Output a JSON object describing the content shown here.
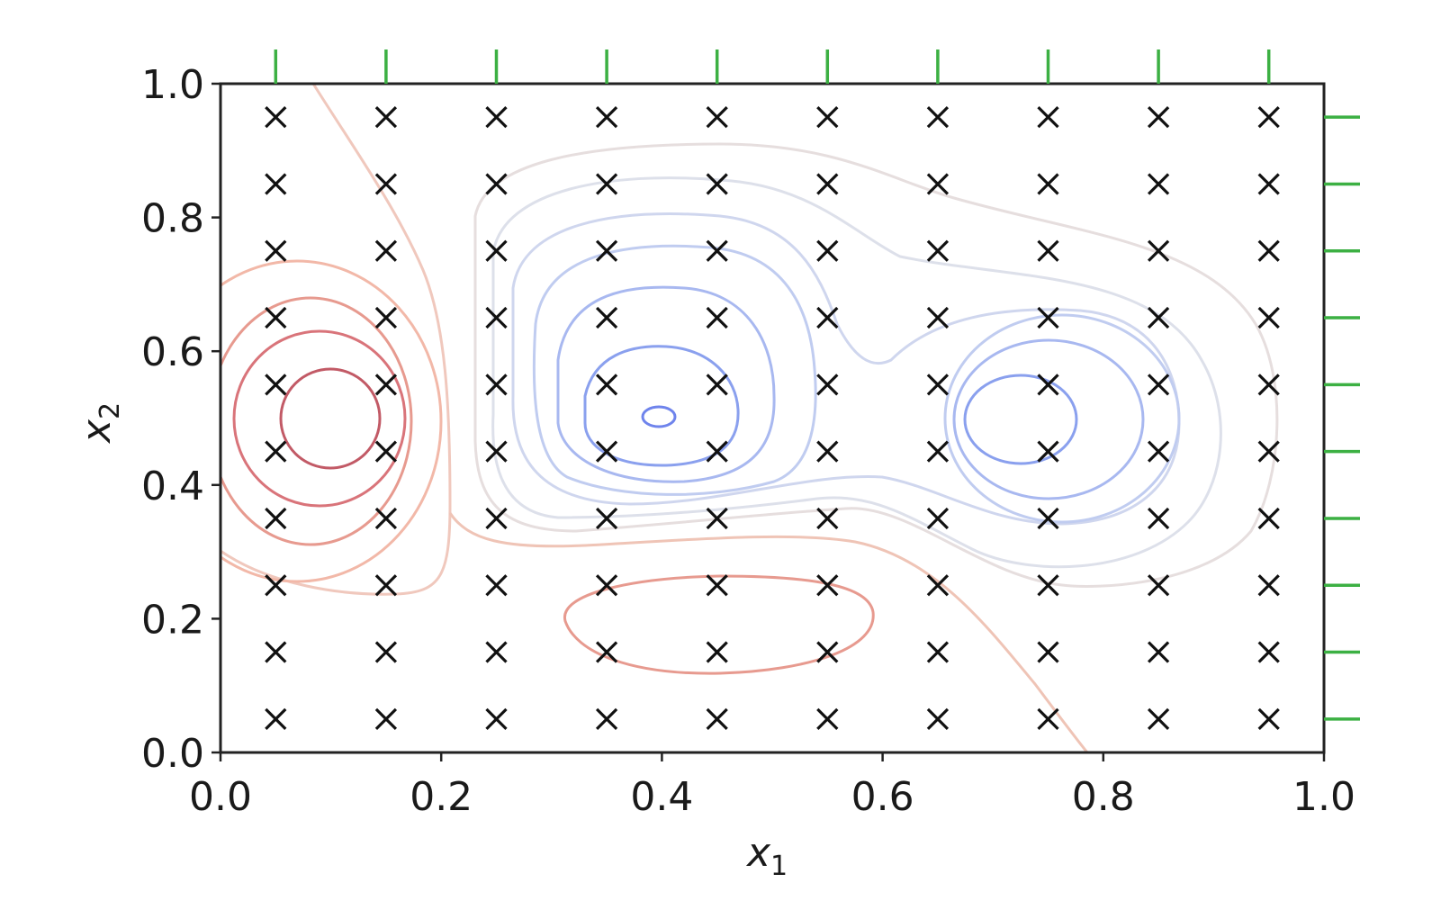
{
  "chart_data": {
    "type": "contour",
    "title": "",
    "xlabel": "x",
    "xlabel_subscript": "1",
    "ylabel": "x",
    "ylabel_subscript": "2",
    "xlim": [
      0.0,
      1.0
    ],
    "ylim": [
      0.0,
      1.0
    ],
    "xticks": [
      "0.0",
      "0.2",
      "0.4",
      "0.6",
      "0.8",
      "1.0"
    ],
    "yticks": [
      "0.0",
      "0.2",
      "0.4",
      "0.6",
      "0.8",
      "1.0"
    ],
    "grid": false,
    "legend": null,
    "sample_points": {
      "marker": "x",
      "color": "#111111",
      "x": [
        0.05,
        0.15,
        0.25,
        0.35,
        0.45,
        0.55,
        0.65,
        0.75,
        0.85,
        0.95
      ],
      "y": [
        0.05,
        0.15,
        0.25,
        0.35,
        0.45,
        0.55,
        0.65,
        0.75,
        0.85,
        0.95
      ],
      "count": 100
    },
    "rug_ticks": {
      "color": "#3cb043",
      "top_x": [
        0.05,
        0.15,
        0.25,
        0.35,
        0.45,
        0.55,
        0.65,
        0.75,
        0.85,
        0.95
      ],
      "right_y": [
        0.05,
        0.15,
        0.25,
        0.35,
        0.45,
        0.55,
        0.65,
        0.75,
        0.85,
        0.95
      ]
    },
    "contour_features": [
      {
        "kind": "maximum",
        "color": "red",
        "center": [
          0.1,
          0.5
        ],
        "rings": 4
      },
      {
        "kind": "maximum",
        "color": "red",
        "center": [
          0.45,
          0.19
        ],
        "rings": 1
      },
      {
        "kind": "minimum",
        "color": "blue",
        "center": [
          0.4,
          0.5
        ],
        "rings": 6
      },
      {
        "kind": "minimum",
        "color": "blue",
        "center": [
          0.75,
          0.5
        ],
        "rings": 3
      },
      {
        "kind": "zero-level",
        "color": "light red/gray",
        "path": "diagonal from (0.08,1.0) down to (0.2,0.3) and from (0.55,0.3) to (0.78,0.0)"
      }
    ],
    "colormap": "coolwarm (blue = low, red = high)"
  }
}
